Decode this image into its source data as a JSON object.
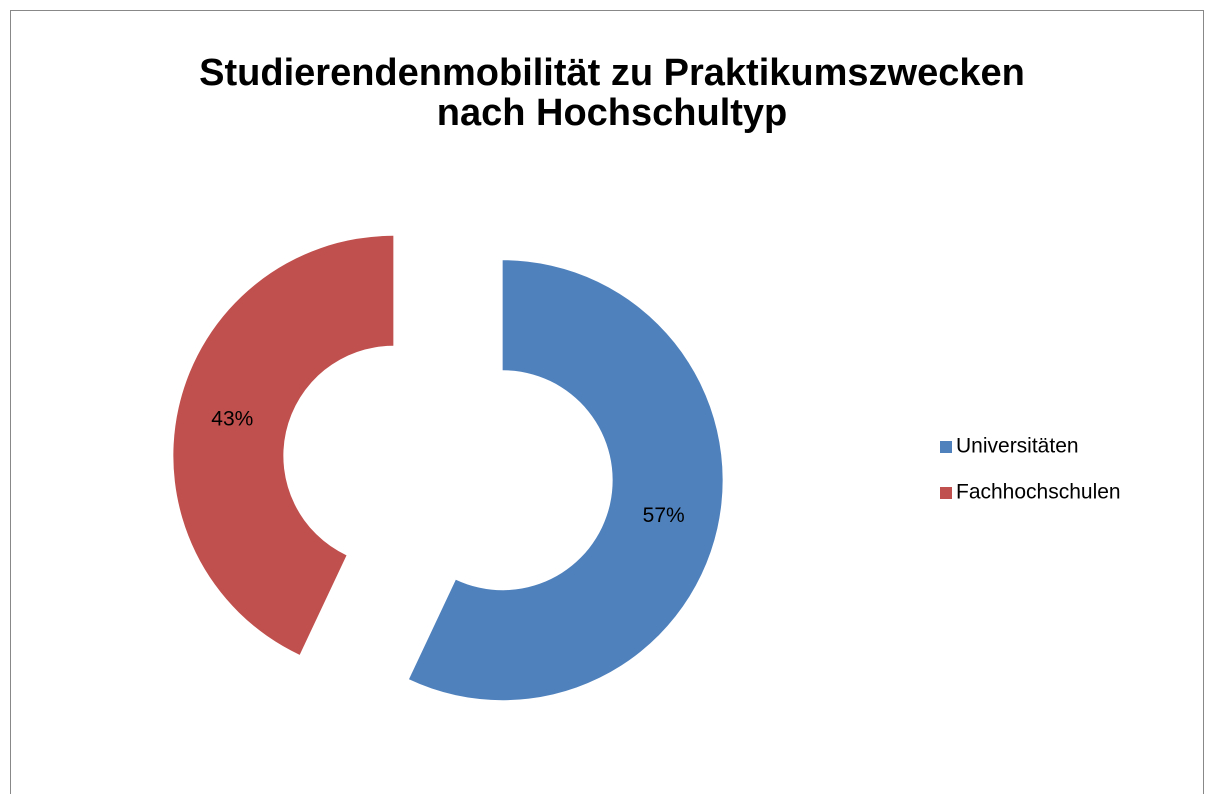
{
  "chart_data": {
    "type": "donut",
    "title": [
      "Studierendenmobilität zu Praktikumszwecken",
      "nach Hochschultyp"
    ],
    "categories": [
      "Universitäten",
      "Fachhochschulen"
    ],
    "values": [
      57,
      43
    ],
    "value_labels": [
      "57%",
      "43%"
    ],
    "colors": [
      "#4f81bd",
      "#c0504d"
    ],
    "legend": "right"
  }
}
